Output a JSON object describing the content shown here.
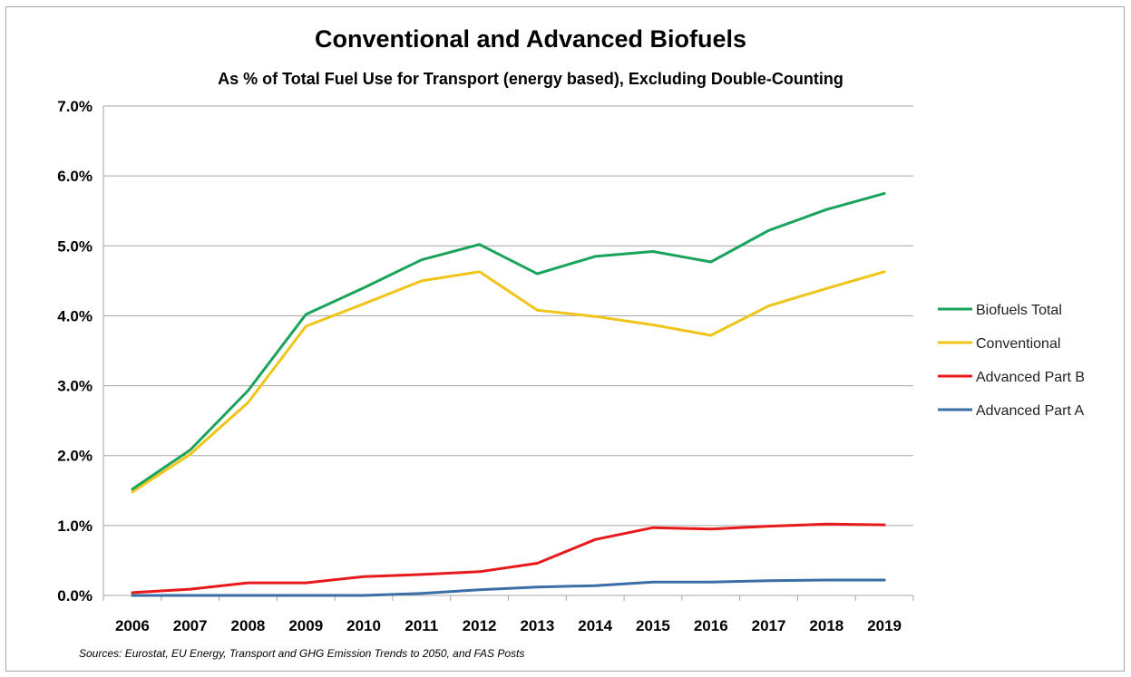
{
  "chart_data": {
    "type": "line",
    "title": "Conventional and Advanced Biofuels",
    "subtitle": "As % of Total Fuel Use for Transport (energy based), Excluding Double-Counting",
    "categories": [
      "2006",
      "2007",
      "2008",
      "2009",
      "2010",
      "2011",
      "2012",
      "2013",
      "2014",
      "2015",
      "2016",
      "2017",
      "2018",
      "2019"
    ],
    "y_ticks": [
      "0.0%",
      "1.0%",
      "2.0%",
      "3.0%",
      "4.0%",
      "5.0%",
      "6.0%",
      "7.0%"
    ],
    "ylim": [
      0,
      7
    ],
    "y_unit": "%",
    "grid": "horizontal",
    "legend_position": "right",
    "series": [
      {
        "name": "Biofuels Total",
        "color": "#1aa35a",
        "values": [
          1.52,
          2.08,
          2.93,
          4.02,
          4.4,
          4.8,
          5.02,
          4.6,
          4.85,
          4.92,
          4.77,
          5.22,
          5.52,
          5.75
        ]
      },
      {
        "name": "Conventional",
        "color": "#f0c419",
        "values": [
          1.48,
          2.02,
          2.76,
          3.85,
          4.17,
          4.5,
          4.63,
          4.08,
          3.99,
          3.87,
          3.72,
          4.14,
          4.39,
          4.63
        ]
      },
      {
        "name": "Advanced Part B",
        "color": "#e8191a",
        "values": [
          0.04,
          0.09,
          0.18,
          0.18,
          0.27,
          0.3,
          0.34,
          0.46,
          0.8,
          0.97,
          0.95,
          0.99,
          1.02,
          1.01
        ]
      },
      {
        "name": "Advanced Part A",
        "color": "#3a6ea5",
        "values": [
          0.0,
          0.0,
          0.0,
          0.0,
          0.0,
          0.03,
          0.08,
          0.12,
          0.14,
          0.19,
          0.19,
          0.21,
          0.22,
          0.22
        ]
      }
    ],
    "source_note": "Sources: Eurostat, EU Energy, Transport and GHG Emission Trends to 2050, and FAS Posts"
  }
}
